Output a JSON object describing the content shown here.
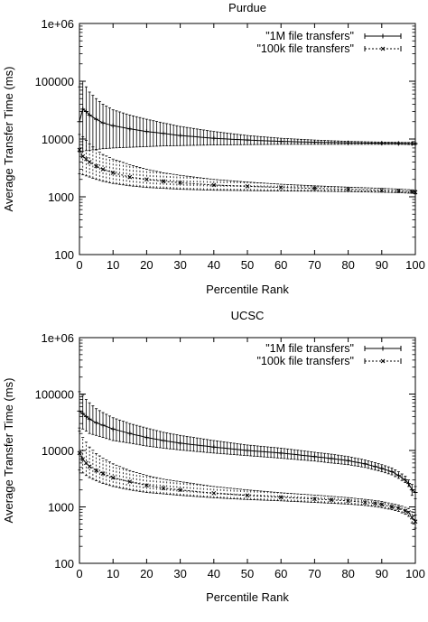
{
  "chart_data": [
    {
      "type": "line",
      "title": "Purdue",
      "xlabel": "Percentile Rank",
      "ylabel": "Average Transfer Time (ms)",
      "xlim": [
        0,
        100
      ],
      "ylim": [
        100,
        1000000
      ],
      "yscale": "log",
      "xticks": [
        0,
        10,
        20,
        30,
        40,
        50,
        60,
        70,
        80,
        90,
        100
      ],
      "yticks": [
        100,
        1000,
        10000,
        100000,
        1000000
      ],
      "ytick_labels": [
        "100",
        "1000",
        "10000",
        "100000",
        "1e+06"
      ],
      "grid": false,
      "legend_position": "top-right",
      "series": [
        {
          "name": "\"1M file transfers\"",
          "marker": "plus",
          "line": "solid",
          "x": [
            0,
            1,
            2,
            3,
            5,
            7,
            10,
            15,
            20,
            25,
            30,
            40,
            50,
            60,
            70,
            80,
            90,
            95,
            99,
            100
          ],
          "y": [
            20000,
            33000,
            30000,
            26000,
            22000,
            19000,
            17000,
            15000,
            13500,
            12500,
            11500,
            10300,
            9600,
            9100,
            8800,
            8600,
            8450,
            8400,
            8350,
            8300
          ],
          "err_low": [
            6000,
            6200,
            6300,
            6400,
            6600,
            6800,
            7000,
            7200,
            7400,
            7600,
            7700,
            7900,
            8000,
            8100,
            8100,
            8100,
            8100,
            8100,
            8000,
            8000
          ],
          "err_high": [
            80000,
            100000,
            80000,
            65000,
            50000,
            40000,
            32000,
            26000,
            22000,
            19000,
            16500,
            13500,
            11500,
            10300,
            9600,
            9100,
            8850,
            8750,
            8700,
            8600
          ]
        },
        {
          "name": "\"100k file transfers\"",
          "marker": "cross",
          "line": "dashed",
          "x": [
            0,
            1,
            2,
            3,
            5,
            7,
            10,
            15,
            20,
            25,
            30,
            40,
            50,
            60,
            70,
            80,
            90,
            95,
            99,
            100
          ],
          "y": [
            6500,
            5000,
            4500,
            4000,
            3400,
            3000,
            2600,
            2200,
            2000,
            1850,
            1750,
            1600,
            1520,
            1450,
            1400,
            1350,
            1300,
            1270,
            1230,
            1200
          ],
          "err_low": [
            2500,
            2400,
            2300,
            2200,
            2000,
            1850,
            1700,
            1550,
            1450,
            1400,
            1350,
            1300,
            1280,
            1260,
            1250,
            1230,
            1200,
            1180,
            1150,
            1120
          ],
          "err_high": [
            12000,
            11000,
            9500,
            8200,
            6500,
            5400,
            4500,
            3600,
            3000,
            2600,
            2350,
            2000,
            1800,
            1650,
            1550,
            1470,
            1400,
            1360,
            1320,
            1290
          ]
        }
      ]
    },
    {
      "type": "line",
      "title": "UCSC",
      "xlabel": "Percentile Rank",
      "ylabel": "Average Transfer Time (ms)",
      "xlim": [
        0,
        100
      ],
      "ylim": [
        100,
        1000000
      ],
      "yscale": "log",
      "xticks": [
        0,
        10,
        20,
        30,
        40,
        50,
        60,
        70,
        80,
        90,
        100
      ],
      "yticks": [
        100,
        1000,
        10000,
        100000,
        1000000
      ],
      "ytick_labels": [
        "100",
        "1000",
        "10000",
        "100000",
        "1e+06"
      ],
      "grid": false,
      "legend_position": "top-right",
      "series": [
        {
          "name": "\"1M file transfers\"",
          "marker": "plus",
          "line": "solid",
          "x": [
            0,
            1,
            2,
            3,
            5,
            7,
            10,
            15,
            20,
            25,
            30,
            40,
            50,
            60,
            70,
            75,
            80,
            85,
            88,
            90,
            93,
            95,
            97,
            98,
            99,
            100
          ],
          "y": [
            50000,
            45000,
            40000,
            36000,
            31000,
            28000,
            24000,
            20000,
            17000,
            15000,
            13500,
            11500,
            10000,
            9000,
            7800,
            7200,
            6600,
            5800,
            5200,
            4800,
            4200,
            3600,
            3000,
            2600,
            2000,
            1800
          ],
          "err_low": [
            25000,
            24000,
            22000,
            20000,
            18500,
            17000,
            15000,
            13500,
            12000,
            11000,
            10200,
            9000,
            8100,
            7300,
            6500,
            6000,
            5600,
            5000,
            4500,
            4200,
            3700,
            3200,
            2700,
            2300,
            1600,
            1400
          ],
          "err_high": [
            110000,
            95000,
            80000,
            70000,
            55000,
            47000,
            38000,
            30000,
            25000,
            21000,
            18500,
            15000,
            12500,
            11000,
            9300,
            8600,
            7800,
            6800,
            6100,
            5600,
            4900,
            4200,
            3500,
            3000,
            2500,
            2300
          ]
        },
        {
          "name": "\"100k file transfers\"",
          "marker": "cross",
          "line": "dashed",
          "x": [
            0,
            1,
            2,
            3,
            5,
            7,
            10,
            15,
            20,
            25,
            30,
            40,
            50,
            60,
            70,
            75,
            80,
            85,
            88,
            90,
            93,
            95,
            97,
            98,
            99,
            100
          ],
          "y": [
            9000,
            7000,
            6000,
            5200,
            4400,
            3900,
            3300,
            2800,
            2400,
            2150,
            2000,
            1750,
            1600,
            1480,
            1380,
            1330,
            1280,
            1200,
            1150,
            1100,
            1000,
            950,
            850,
            800,
            650,
            550
          ],
          "err_low": [
            4500,
            4000,
            3600,
            3300,
            2900,
            2600,
            2300,
            2000,
            1800,
            1700,
            1600,
            1450,
            1350,
            1280,
            1200,
            1160,
            1120,
            1060,
            1010,
            970,
            890,
            830,
            740,
            680,
            520,
            420
          ],
          "err_high": [
            22000,
            17000,
            14000,
            11500,
            8800,
            7300,
            5800,
            4400,
            3600,
            3100,
            2800,
            2300,
            2000,
            1780,
            1620,
            1540,
            1460,
            1360,
            1300,
            1250,
            1140,
            1080,
            980,
            940,
            820,
            720
          ]
        }
      ]
    }
  ]
}
